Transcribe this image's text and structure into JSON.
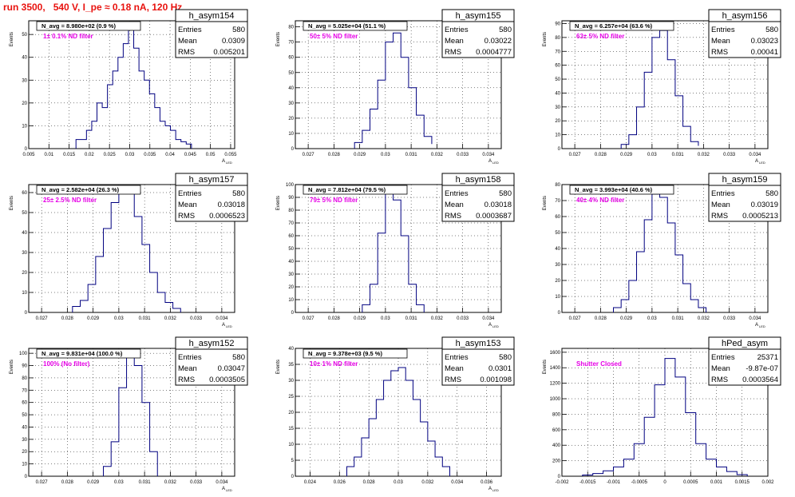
{
  "page_title": "run 3500,   540 V, I_pe ≈ 0.18 nA, 120 Hz",
  "colors": {
    "title": "#e8120e",
    "filter_label": "#e600e6",
    "histogram": "#000080",
    "grid": "#000000"
  },
  "chart_data": [
    {
      "type": "histogram",
      "name": "h_asym154",
      "nav": "N_avg = 8.980e+02 (0.9 %)",
      "filter_label": "1± 0.1% ND filter",
      "stats": [
        [
          "Entries",
          "580"
        ],
        [
          "Mean",
          "0.0309"
        ],
        [
          "RMS",
          "0.005201"
        ]
      ],
      "xlabel": "A_LED",
      "ylabel": "Events",
      "xlim": [
        0.005,
        0.056
      ],
      "xticks": [
        0.005,
        0.01,
        0.015,
        0.02,
        0.025,
        0.03,
        0.035,
        0.04,
        0.045,
        0.05,
        0.055
      ],
      "xtick_labels": [
        "0.005",
        "0.01",
        "0.015",
        "0.02",
        "0.025",
        "0.03",
        "0.035",
        "0.04",
        "0.045",
        "0.05",
        "0.055"
      ],
      "ylim": [
        0,
        56
      ],
      "yticks": [
        0,
        10,
        20,
        30,
        40,
        50
      ],
      "bin_edges": [
        0.0167,
        0.018,
        0.0193,
        0.0206,
        0.0219,
        0.0232,
        0.0245,
        0.0258,
        0.0271,
        0.0284,
        0.0297,
        0.031,
        0.0323,
        0.0336,
        0.0349,
        0.0362,
        0.0375,
        0.0388,
        0.0401,
        0.0414,
        0.0427,
        0.044,
        0.0453
      ],
      "counts": [
        4,
        4,
        8,
        12,
        20,
        18,
        28,
        34,
        40,
        46,
        54,
        44,
        34,
        30,
        24,
        18,
        12,
        10,
        8,
        4,
        3,
        2
      ]
    },
    {
      "type": "histogram",
      "name": "h_asym155",
      "nav": "N_avg = 5.025e+04 (51.1 %)",
      "filter_label": "50± 5% ND filter",
      "stats": [
        [
          "Entries",
          "580"
        ],
        [
          "Mean",
          "0.03022"
        ],
        [
          "RMS",
          "0.0004777"
        ]
      ],
      "xlabel": "A_LED",
      "ylabel": "Events",
      "xlim": [
        0.0265,
        0.0345
      ],
      "xticks": [
        0.027,
        0.028,
        0.029,
        0.03,
        0.031,
        0.032,
        0.033,
        0.034
      ],
      "xtick_labels": [
        "0.027",
        "0.028",
        "0.029",
        "0.03",
        "0.031",
        "0.032",
        "0.033",
        "0.034"
      ],
      "ylim": [
        0,
        84
      ],
      "yticks": [
        0,
        10,
        20,
        30,
        40,
        50,
        60,
        70,
        80
      ],
      "bin_edges": [
        0.0288,
        0.0291,
        0.0294,
        0.0297,
        0.03,
        0.0303,
        0.0306,
        0.0309,
        0.0312,
        0.0315,
        0.0318
      ],
      "counts": [
        4,
        12,
        26,
        45,
        70,
        76,
        60,
        40,
        22,
        8,
        3
      ]
    },
    {
      "type": "histogram",
      "name": "h_asym156",
      "nav": "N_avg = 6.257e+04 (63.6 %)",
      "filter_label": "63± 5% ND filter",
      "stats": [
        [
          "Entries",
          "580"
        ],
        [
          "Mean",
          "0.03023"
        ],
        [
          "RMS",
          "0.00041"
        ]
      ],
      "xlabel": "A_LED",
      "ylabel": "Events",
      "xlim": [
        0.0265,
        0.0345
      ],
      "xticks": [
        0.027,
        0.028,
        0.029,
        0.03,
        0.031,
        0.032,
        0.033,
        0.034
      ],
      "xtick_labels": [
        "0.027",
        "0.028",
        "0.029",
        "0.03",
        "0.031",
        "0.032",
        "0.033",
        "0.034"
      ],
      "ylim": [
        0,
        92
      ],
      "yticks": [
        0,
        10,
        20,
        30,
        40,
        50,
        60,
        70,
        80,
        90
      ],
      "bin_edges": [
        0.0288,
        0.0291,
        0.0294,
        0.0297,
        0.03,
        0.0303,
        0.0306,
        0.0309,
        0.0312,
        0.0315,
        0.0318
      ],
      "counts": [
        3,
        10,
        30,
        55,
        80,
        85,
        64,
        38,
        16,
        5,
        2
      ]
    },
    {
      "type": "histogram",
      "name": "h_asym157",
      "nav": "N_avg = 2.582e+04 (26.3 %)",
      "filter_label": "25± 2.5% ND filter",
      "stats": [
        [
          "Entries",
          "580"
        ],
        [
          "Mean",
          "0.03018"
        ],
        [
          "RMS",
          "0.0006523"
        ]
      ],
      "xlabel": "A_LED",
      "ylabel": "Events",
      "xlim": [
        0.0265,
        0.0345
      ],
      "xticks": [
        0.027,
        0.028,
        0.029,
        0.03,
        0.031,
        0.032,
        0.033,
        0.034
      ],
      "xtick_labels": [
        "0.027",
        "0.028",
        "0.029",
        "0.03",
        "0.031",
        "0.032",
        "0.033",
        "0.034"
      ],
      "ylim": [
        0,
        64
      ],
      "yticks": [
        0,
        10,
        20,
        30,
        40,
        50,
        60
      ],
      "bin_edges": [
        0.0282,
        0.0285,
        0.0288,
        0.0291,
        0.0294,
        0.0297,
        0.03,
        0.0303,
        0.0306,
        0.0309,
        0.0312,
        0.0315,
        0.0318,
        0.0321,
        0.0324
      ],
      "counts": [
        3,
        6,
        14,
        28,
        42,
        55,
        62,
        60,
        48,
        34,
        20,
        10,
        5,
        2
      ]
    },
    {
      "type": "histogram",
      "name": "h_asym158",
      "nav": "N_avg = 7.812e+04 (79.5 %)",
      "filter_label": "79± 5% ND filter",
      "stats": [
        [
          "Entries",
          "580"
        ],
        [
          "Mean",
          "0.03018"
        ],
        [
          "RMS",
          "0.0003687"
        ]
      ],
      "xlabel": "A_LED",
      "ylabel": "Events",
      "xlim": [
        0.0265,
        0.0345
      ],
      "xticks": [
        0.027,
        0.028,
        0.029,
        0.03,
        0.031,
        0.032,
        0.033,
        0.034
      ],
      "xtick_labels": [
        "0.027",
        "0.028",
        "0.029",
        "0.03",
        "0.031",
        "0.032",
        "0.033",
        "0.034"
      ],
      "ylim": [
        0,
        100
      ],
      "yticks": [
        0,
        10,
        20,
        30,
        40,
        50,
        60,
        70,
        80,
        90,
        100
      ],
      "bin_edges": [
        0.0291,
        0.0294,
        0.0297,
        0.03,
        0.0303,
        0.0306,
        0.0309,
        0.0312,
        0.0315
      ],
      "counts": [
        6,
        22,
        62,
        96,
        88,
        60,
        22,
        6
      ]
    },
    {
      "type": "histogram",
      "name": "h_asym159",
      "nav": "N_avg = 3.993e+04 (40.6 %)",
      "filter_label": "40± 4% ND filter",
      "stats": [
        [
          "Entries",
          "580"
        ],
        [
          "Mean",
          "0.03019"
        ],
        [
          "RMS",
          "0.0005213"
        ]
      ],
      "xlabel": "A_LED",
      "ylabel": "Events",
      "xlim": [
        0.0265,
        0.0345
      ],
      "xticks": [
        0.027,
        0.028,
        0.029,
        0.03,
        0.031,
        0.032,
        0.033,
        0.034
      ],
      "xtick_labels": [
        "0.027",
        "0.028",
        "0.029",
        "0.03",
        "0.031",
        "0.032",
        "0.033",
        "0.034"
      ],
      "ylim": [
        0,
        80
      ],
      "yticks": [
        0,
        10,
        20,
        30,
        40,
        50,
        60,
        70,
        80
      ],
      "bin_edges": [
        0.0285,
        0.0288,
        0.0291,
        0.0294,
        0.0297,
        0.03,
        0.0303,
        0.0306,
        0.0309,
        0.0312,
        0.0315,
        0.0318,
        0.0321
      ],
      "counts": [
        3,
        8,
        20,
        38,
        58,
        74,
        72,
        56,
        36,
        18,
        8,
        3
      ]
    },
    {
      "type": "histogram",
      "name": "h_asym152",
      "nav": "N_avg = 9.831e+04 (100.0 %)",
      "filter_label": "100% (No filter)",
      "stats": [
        [
          "Entries",
          "580"
        ],
        [
          "Mean",
          "0.03047"
        ],
        [
          "RMS",
          "0.0003505"
        ]
      ],
      "xlabel": "A_LED",
      "ylabel": "Events",
      "xlim": [
        0.0265,
        0.0345
      ],
      "xticks": [
        0.027,
        0.028,
        0.029,
        0.03,
        0.031,
        0.032,
        0.033,
        0.034
      ],
      "xtick_labels": [
        "0.027",
        "0.028",
        "0.029",
        "0.03",
        "0.031",
        "0.032",
        "0.033",
        "0.034"
      ],
      "ylim": [
        0,
        104
      ],
      "yticks": [
        0,
        10,
        20,
        30,
        40,
        50,
        60,
        70,
        80,
        90,
        100
      ],
      "bin_edges": [
        0.0294,
        0.0297,
        0.03,
        0.0303,
        0.0306,
        0.0309,
        0.0312,
        0.0315
      ],
      "counts": [
        8,
        28,
        72,
        98,
        90,
        60,
        20
      ]
    },
    {
      "type": "histogram",
      "name": "h_asym153",
      "nav": "N_avg = 9.378e+03 (9.5 %)",
      "filter_label": "10± 1% ND filter",
      "stats": [
        [
          "Entries",
          "580"
        ],
        [
          "Mean",
          "0.0301"
        ],
        [
          "RMS",
          "0.001098"
        ]
      ],
      "xlabel": "A_LED",
      "ylabel": "Events",
      "xlim": [
        0.023,
        0.037
      ],
      "xticks": [
        0.024,
        0.026,
        0.028,
        0.03,
        0.032,
        0.034,
        0.036
      ],
      "xtick_labels": [
        "0.024",
        "0.026",
        "0.028",
        "0.03",
        "0.032",
        "0.034",
        "0.036"
      ],
      "ylim": [
        0,
        40
      ],
      "yticks": [
        0,
        5,
        10,
        15,
        20,
        25,
        30,
        35,
        40
      ],
      "bin_edges": [
        0.0265,
        0.027,
        0.0275,
        0.028,
        0.0285,
        0.029,
        0.0295,
        0.03,
        0.0305,
        0.031,
        0.0315,
        0.032,
        0.0325,
        0.033,
        0.0335
      ],
      "counts": [
        3,
        6,
        12,
        18,
        24,
        30,
        33,
        34,
        30,
        24,
        17,
        11,
        6,
        3
      ]
    },
    {
      "type": "histogram",
      "name": "hPed_asym",
      "nav": "",
      "filter_label": "Shutter Closed",
      "stats": [
        [
          "Entries",
          "25371"
        ],
        [
          "Mean",
          "-9.87e-07"
        ],
        [
          "RMS",
          "0.0003564"
        ]
      ],
      "xlabel": "",
      "ylabel": "Events",
      "xlim": [
        -0.002,
        0.002
      ],
      "xticks": [
        -0.002,
        -0.0015,
        -0.001,
        -0.0005,
        0,
        0.0005,
        0.001,
        0.0015,
        0.002
      ],
      "xtick_labels": [
        "-0.002",
        "-0.0015",
        "-0.001",
        "-0.0005",
        "0",
        "0.0005",
        "0.001",
        "0.0015",
        "0.002"
      ],
      "ylim": [
        0,
        1650
      ],
      "yticks": [
        0,
        200,
        400,
        600,
        800,
        1000,
        1200,
        1400,
        1600
      ],
      "bin_edges": [
        -0.0016,
        -0.0014,
        -0.0012,
        -0.001,
        -0.0008,
        -0.0006,
        -0.0004,
        -0.0002,
        0,
        0.0002,
        0.0004,
        0.0006,
        0.0008,
        0.001,
        0.0012,
        0.0014,
        0.0016
      ],
      "counts": [
        15,
        35,
        70,
        120,
        220,
        420,
        760,
        1180,
        1520,
        1280,
        820,
        420,
        220,
        120,
        60,
        20
      ]
    }
  ]
}
